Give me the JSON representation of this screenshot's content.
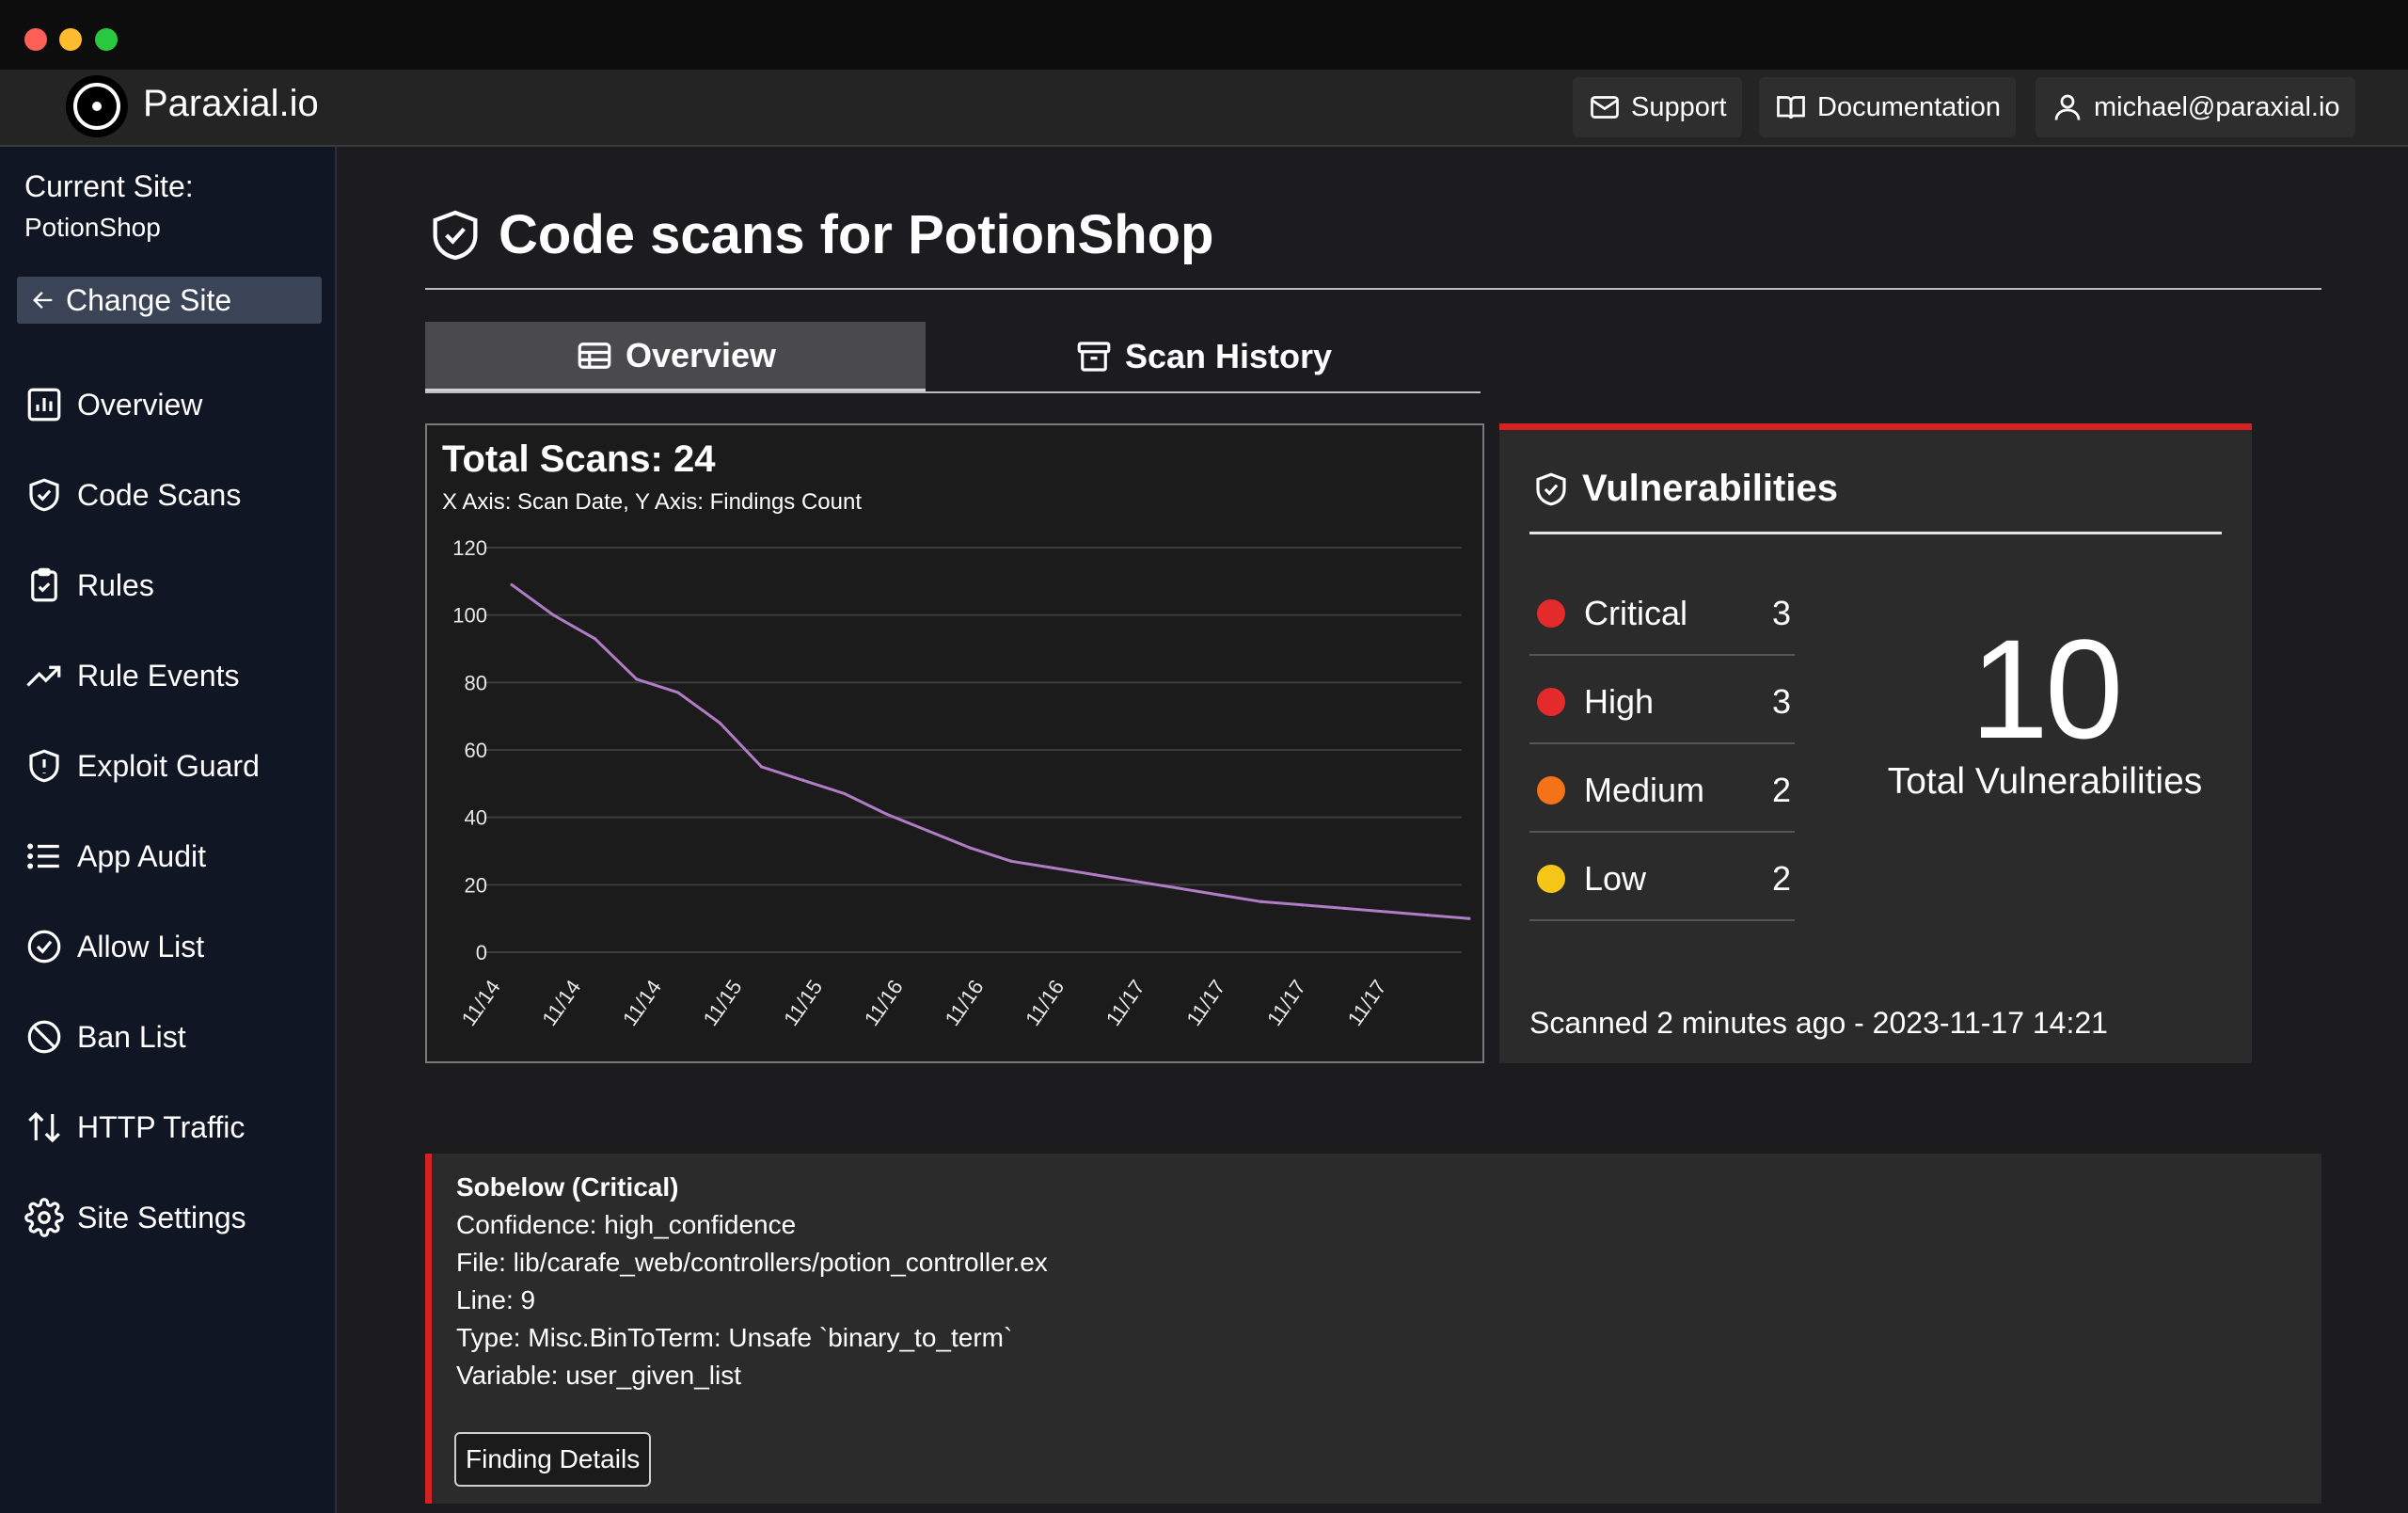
{
  "header": {
    "brand": "Paraxial.io",
    "support_label": "Support",
    "docs_label": "Documentation",
    "user_label": "michael@paraxial.io"
  },
  "sidebar": {
    "current_site_label": "Current Site:",
    "current_site": "PotionShop",
    "change_site_label": "Change Site",
    "items": [
      {
        "label": "Overview",
        "icon": "bar-chart-icon"
      },
      {
        "label": "Code Scans",
        "icon": "shield-check-icon"
      },
      {
        "label": "Rules",
        "icon": "clipboard-check-icon"
      },
      {
        "label": "Rule Events",
        "icon": "trending-up-icon"
      },
      {
        "label": "Exploit Guard",
        "icon": "shield-alert-icon"
      },
      {
        "label": "App Audit",
        "icon": "list-icon"
      },
      {
        "label": "Allow List",
        "icon": "check-circle-icon"
      },
      {
        "label": "Ban List",
        "icon": "ban-icon"
      },
      {
        "label": "HTTP Traffic",
        "icon": "arrows-up-down-icon"
      },
      {
        "label": "Site Settings",
        "icon": "gear-icon"
      }
    ]
  },
  "page": {
    "title": "Code scans for PotionShop",
    "tabs": [
      {
        "label": "Overview",
        "active": true
      },
      {
        "label": "Scan History",
        "active": false
      }
    ]
  },
  "chart": {
    "title": "Total Scans: 24",
    "subtitle": "X Axis: Scan Date, Y Axis: Findings Count"
  },
  "chart_data": {
    "type": "line",
    "title": "Total Scans: 24",
    "subtitle": "X Axis: Scan Date, Y Axis: Findings Count",
    "xlabel": "Scan Date",
    "ylabel": "Findings Count",
    "ylim": [
      0,
      120
    ],
    "yticks": [
      0,
      20,
      40,
      60,
      80,
      100,
      120
    ],
    "xtick_labels": [
      "11/14",
      "11/14",
      "11/14",
      "11/15",
      "11/15",
      "11/16",
      "11/16",
      "11/16",
      "11/17",
      "11/17",
      "11/17",
      "11/17"
    ],
    "grid": true,
    "series": [
      {
        "color": "#b07cc6",
        "values": [
          109,
          100,
          93,
          81,
          77,
          68,
          55,
          51,
          47,
          41,
          36,
          31,
          27,
          25,
          23,
          21,
          19,
          17,
          15,
          14,
          13,
          12,
          11,
          10
        ]
      }
    ]
  },
  "vulnerabilities": {
    "title": "Vulnerabilities",
    "severities": [
      {
        "label": "Critical",
        "count": "3",
        "color": "#e32b2b"
      },
      {
        "label": "High",
        "count": "3",
        "color": "#e32b2b"
      },
      {
        "label": "Medium",
        "count": "2",
        "color": "#f47318"
      },
      {
        "label": "Low",
        "count": "2",
        "color": "#f5c518"
      }
    ],
    "total": "10",
    "total_label": "Total Vulnerabilities",
    "scanned": "Scanned 2 minutes ago - 2023-11-17 14:21"
  },
  "finding": {
    "title": "Sobelow (Critical)",
    "confidence": "Confidence: high_confidence",
    "file": "File: lib/carafe_web/controllers/potion_controller.ex",
    "line": "Line: 9",
    "type": "Type: Misc.BinToTerm: Unsafe `binary_to_term`",
    "variable": "Variable: user_given_list",
    "button_label": "Finding Details"
  }
}
